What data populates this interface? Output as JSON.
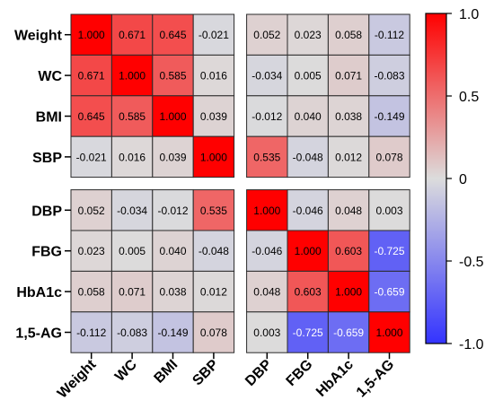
{
  "chart_data": {
    "type": "heatmap",
    "title": "",
    "xlabel": "",
    "ylabel": "",
    "row_labels": [
      "Weight",
      "WC",
      "BMI",
      "SBP",
      "DBP",
      "FBG",
      "HbA1c",
      "1,5-AG"
    ],
    "col_labels": [
      "Weight",
      "WC",
      "BMI",
      "SBP",
      "DBP",
      "FBG",
      "HbA1c",
      "1,5-AG"
    ],
    "value_labels": [
      [
        "1.000",
        "0.671",
        "0.645",
        "-0.021",
        "0.052",
        "0.023",
        "0.058",
        "-0.112"
      ],
      [
        "0.671",
        "1.000",
        "0.585",
        "0.016",
        "-0.034",
        "0.005",
        "0.071",
        "-0.083"
      ],
      [
        "0.645",
        "0.585",
        "1.000",
        "0.039",
        "-0.012",
        "0.040",
        "0.038",
        "-0.149"
      ],
      [
        "-0.021",
        "0.016",
        "0.039",
        "1.000",
        "0.535",
        "-0.048",
        "0.012",
        "0.078"
      ],
      [
        "0.052",
        "-0.034",
        "-0.012",
        "0.535",
        "1.000",
        "-0.046",
        "0.048",
        "0.003"
      ],
      [
        "0.023",
        "0.005",
        "0.040",
        "-0.048",
        "-0.046",
        "1.000",
        "0.603",
        "-0.725"
      ],
      [
        "0.058",
        "0.071",
        "0.038",
        "0.012",
        "0.048",
        "0.603",
        "1.000",
        "-0.659"
      ],
      [
        "-0.112",
        "-0.083",
        "-0.149",
        "0.078",
        "0.003",
        "-0.725",
        "-0.659",
        "1.000"
      ]
    ],
    "color_scale": {
      "min": -1.0,
      "max": 1.0,
      "low": "#3333ff",
      "mid": "#dcdcdc",
      "high": "#ff0000"
    },
    "colorbar_ticks": [
      "1.0",
      "0.5",
      "0",
      "-0.5",
      "-1.0"
    ],
    "colorbar_tick_values": [
      1.0,
      0.5,
      0,
      -0.5,
      -1.0
    ],
    "split_after_index": 3,
    "legend_placement": "right",
    "grid": true
  }
}
